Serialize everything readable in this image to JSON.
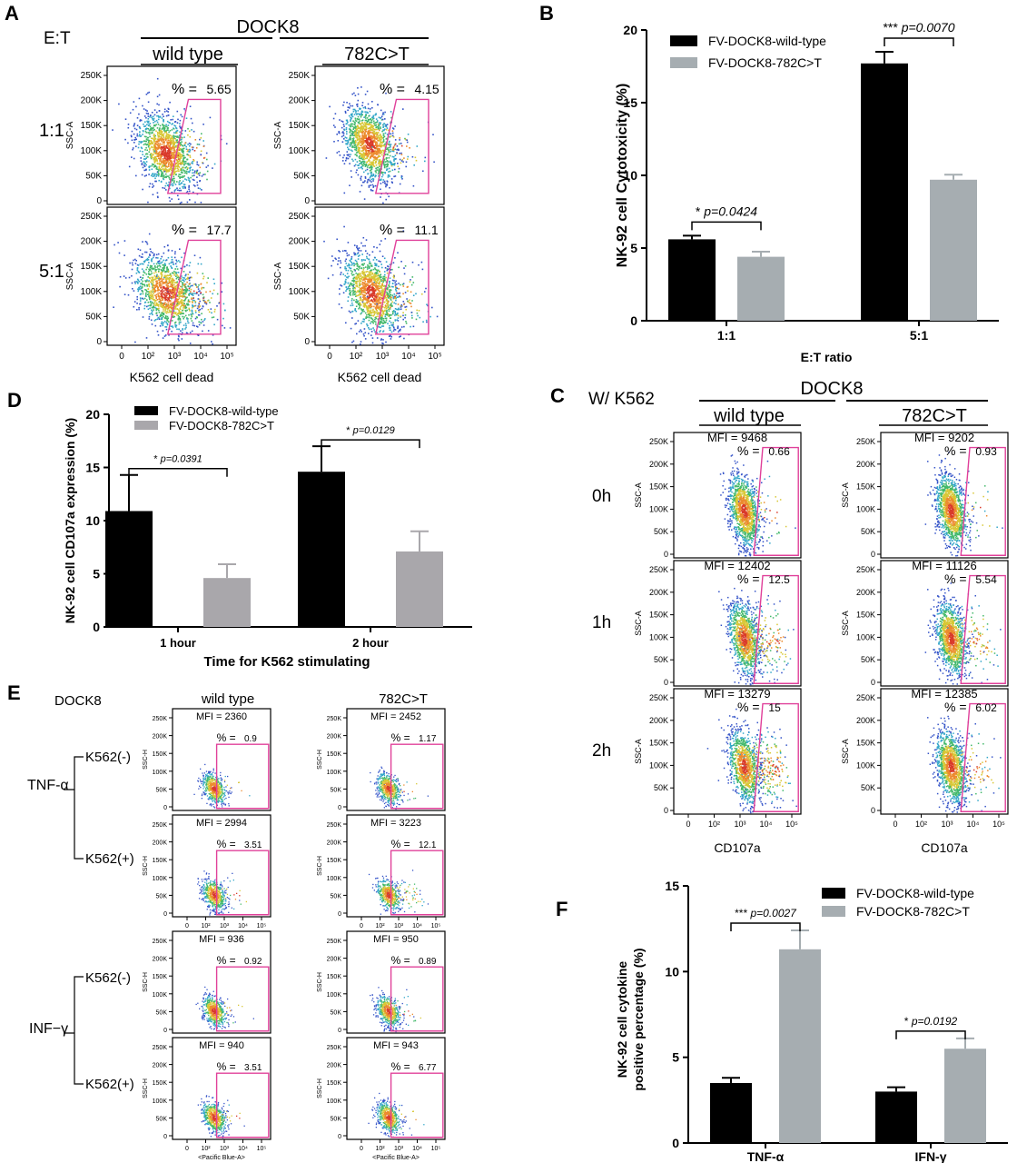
{
  "colors": {
    "wild_type": "#000000",
    "mutant": "#a6adb1",
    "mutant_D": "#a9a7ab",
    "gate": "#e0409a",
    "significance": "#000000"
  },
  "icons": [
    "flow-cytometry-scatter-icon"
  ],
  "panel_A": {
    "letter": "A",
    "ratio_label": "E:T",
    "gene": "DOCK8",
    "groups": [
      "wild type",
      "782C>T"
    ],
    "rows": [
      "1:1",
      "5:1"
    ],
    "percents": [
      [
        "% = ",
        "5.65",
        "% = ",
        "4.15"
      ],
      [
        "% = ",
        "17.7",
        "% = ",
        "11.1"
      ]
    ],
    "y_axis_label": "SSC-A",
    "x_axis_label": "K562 cell dead",
    "y_ticks": [
      "250K",
      "200K",
      "150K",
      "100K",
      "50K",
      "0"
    ],
    "x_ticks": [
      "0",
      "10²",
      "10³",
      "10⁴",
      "10⁵"
    ]
  },
  "panel_B": {
    "letter": "B",
    "legend": [
      "FV-DOCK8-wild-type",
      "FV-DOCK8-782C>T"
    ],
    "annotations": [
      "* p=0.0424",
      "*** p=0.0070"
    ]
  },
  "panel_C": {
    "letter": "C",
    "condition": "W/ K562",
    "gene": "DOCK8",
    "groups": [
      "wild type",
      "782C>T"
    ],
    "rows": [
      "0h",
      "1h",
      "2h"
    ],
    "mfi": [
      [
        "MFI = 9468",
        "MFI = 9202"
      ],
      [
        "MFI = 12402",
        "MFI = 11126"
      ],
      [
        "MFI = 13279",
        "MFI = 12385"
      ]
    ],
    "percents": [
      [
        "% = ",
        "0.66",
        "% = ",
        "0.93"
      ],
      [
        "% = ",
        "12.5",
        "% = ",
        "5.54"
      ],
      [
        "% = ",
        "15",
        "% = ",
        "6.02"
      ]
    ],
    "y_axis_label": "SSC-A",
    "x_axis_label": "CD107a",
    "y_ticks": [
      "250K",
      "200K",
      "150K",
      "100K",
      "50K",
      "0"
    ],
    "x_ticks": [
      "0",
      "10²",
      "10³",
      "10⁴",
      "10⁵"
    ]
  },
  "panel_D": {
    "letter": "D",
    "legend": [
      "FV-DOCK8-wild-type",
      "FV-DOCK8-782C>T"
    ],
    "annotations": [
      "* p=0.0391",
      "* p=0.0129"
    ]
  },
  "panel_E": {
    "letter": "E",
    "gene": "DOCK8",
    "groups": [
      "wild type",
      "782C>T"
    ],
    "cytokines": [
      "TNF-α",
      "INF−γ"
    ],
    "conditions": [
      "K562(-)",
      "K562(+)"
    ],
    "mfi": [
      [
        "MFI = 2360",
        "MFI = 2452"
      ],
      [
        "MFI = 2994",
        "MFI = 3223"
      ],
      [
        "MFI = 936",
        "MFI = 950"
      ],
      [
        "MFI = 940",
        "MFI = 943"
      ]
    ],
    "percents": [
      [
        "% = ",
        "0.9",
        "% = ",
        "1.17"
      ],
      [
        "% = ",
        "3.51",
        "% = ",
        "12.1"
      ],
      [
        "% = ",
        "0.92",
        "% = ",
        "0.89"
      ],
      [
        "% = ",
        "3.51",
        "% = ",
        "6.77"
      ]
    ],
    "y_axis_label": "SSC-H",
    "x_axis_labels": [
      "<APC-A>",
      "<APC-A>",
      "<Pacific Blue-A>",
      "<Pacific Blue-A>"
    ],
    "y_ticks": [
      "250K",
      "200K",
      "150K",
      "100K",
      "50K",
      "0"
    ],
    "x_ticks": [
      "0",
      "10²",
      "10³",
      "10⁴",
      "10⁵"
    ]
  },
  "panel_F": {
    "letter": "F",
    "legend": [
      "FV-DOCK8-wild-type",
      "FV-DOCK8-782C>T"
    ],
    "annotations": [
      "*** p=0.0027",
      "* p=0.0192"
    ]
  },
  "chart_data": [
    {
      "id": "B",
      "type": "bar",
      "title": "",
      "xlabel": "E:T ratio",
      "ylabel": "NK-92 cell Cytotoxicity (%)",
      "categories": [
        "1:1",
        "5:1"
      ],
      "ylim": [
        0,
        20
      ],
      "yticks": [
        0,
        5,
        10,
        15,
        20
      ],
      "legend_position": "top-left",
      "grid": false,
      "series": [
        {
          "name": "FV-DOCK8-wild-type",
          "values": [
            5.6,
            17.7
          ],
          "errors": [
            0.25,
            0.8
          ]
        },
        {
          "name": "FV-DOCK8-782C>T",
          "values": [
            4.4,
            9.7
          ],
          "errors": [
            0.35,
            0.35
          ]
        }
      ],
      "significance": [
        {
          "category": 0,
          "stars": "*",
          "label": "p=0.0424"
        },
        {
          "category": 1,
          "stars": "***",
          "label": "p=0.0070"
        }
      ]
    },
    {
      "id": "D",
      "type": "bar",
      "title": "",
      "xlabel": "Time for K562 stimulating",
      "ylabel": "NK-92 cell CD107a expression (%)",
      "categories": [
        "1 hour",
        "2 hour"
      ],
      "ylim": [
        0,
        20
      ],
      "yticks": [
        0,
        5,
        10,
        15,
        20
      ],
      "legend_position": "top-left",
      "grid": false,
      "series": [
        {
          "name": "FV-DOCK8-wild-type",
          "values": [
            10.9,
            14.6
          ],
          "errors": [
            3.4,
            2.4
          ]
        },
        {
          "name": "FV-DOCK8-782C>T",
          "values": [
            4.6,
            7.1
          ],
          "errors": [
            1.3,
            1.9
          ]
        }
      ],
      "significance": [
        {
          "category": 0,
          "stars": "*",
          "label": "p=0.0391"
        },
        {
          "category": 1,
          "stars": "*",
          "label": "p=0.0129"
        }
      ]
    },
    {
      "id": "F",
      "type": "bar",
      "title": "",
      "xlabel": "",
      "ylabel": "NK-92 cell cytokine positive percentage (%)",
      "categories": [
        "TNF-α",
        "IFN-γ"
      ],
      "ylim": [
        0,
        15
      ],
      "yticks": [
        0,
        5,
        10,
        15
      ],
      "legend_position": "top-right",
      "grid": false,
      "series": [
        {
          "name": "FV-DOCK8-wild-type",
          "values": [
            3.5,
            3.0
          ],
          "errors": [
            0.3,
            0.25
          ]
        },
        {
          "name": "FV-DOCK8-782C>T",
          "values": [
            11.3,
            5.5
          ],
          "errors": [
            1.1,
            0.6
          ]
        }
      ],
      "significance": [
        {
          "category": 0,
          "stars": "***",
          "label": "p=0.0027"
        },
        {
          "category": 1,
          "stars": "*",
          "label": "p=0.0192"
        }
      ]
    }
  ]
}
